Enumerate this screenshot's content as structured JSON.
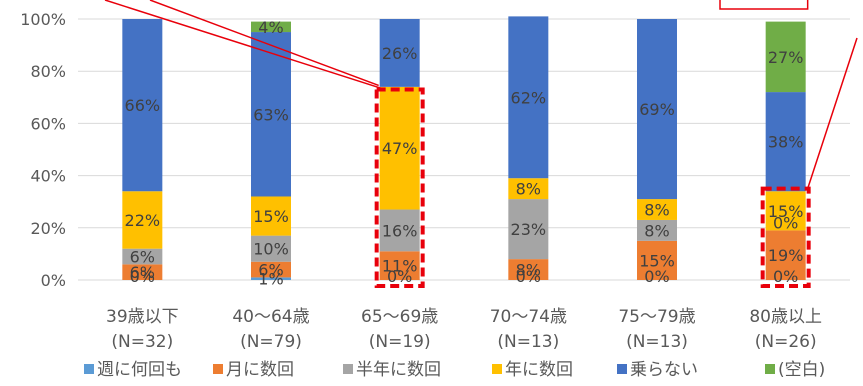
{
  "colors": {
    "weekly": "#5B9BD5",
    "monthly": "#ED7D31",
    "halfyear": "#A5A5A5",
    "yearly": "#FFC000",
    "none": "#4472C4",
    "blank": "#70AD47",
    "highlight": "#E8000B",
    "grid": "#D9D9D9"
  },
  "chart_data": {
    "type": "bar",
    "stacked": true,
    "ylim": [
      0,
      100
    ],
    "yticks": [
      "0%",
      "20%",
      "40%",
      "60%",
      "80%",
      "100%"
    ],
    "grid": true,
    "legend_position": "bottom",
    "categories": [
      "39歳以下",
      "40〜64歳",
      "65〜69歳",
      "70〜74歳",
      "75〜79歳",
      "80歳以上"
    ],
    "category_n": [
      "(N=32)",
      "(N=79)",
      "(N=19)",
      "(N=13)",
      "(N=13)",
      "(N=26)"
    ],
    "series": [
      {
        "name": "週に何回も",
        "color_key": "weekly",
        "values": [
          0,
          1,
          0,
          0,
          0,
          0
        ],
        "labels": [
          "0%",
          "1%",
          "0%",
          "0%",
          "0%",
          "0%"
        ]
      },
      {
        "name": "月に数回",
        "color_key": "monthly",
        "values": [
          6,
          6,
          11,
          8,
          15,
          19
        ],
        "labels": [
          "6%",
          "6%",
          "11%",
          "8%",
          "15%",
          "19%"
        ]
      },
      {
        "name": "半年に数回",
        "color_key": "halfyear",
        "values": [
          6,
          10,
          16,
          23,
          8,
          0
        ],
        "labels": [
          "6%",
          "10%",
          "16%",
          "23%",
          "8%",
          "0%"
        ]
      },
      {
        "name": "年に数回",
        "color_key": "yearly",
        "values": [
          22,
          15,
          47,
          8,
          8,
          15
        ],
        "labels": [
          "22%",
          "15%",
          "47%",
          "8%",
          "8%",
          "15%"
        ]
      },
      {
        "name": "乗らない",
        "color_key": "none",
        "values": [
          66,
          63,
          26,
          62,
          69,
          38
        ],
        "labels": [
          "66%",
          "63%",
          "26%",
          "62%",
          "69%",
          "38%"
        ]
      },
      {
        "name": "(空白)",
        "color_key": "blank",
        "values": [
          0,
          4,
          0,
          0,
          0,
          27
        ],
        "labels": [
          "",
          "4%",
          "",
          "",
          "",
          "27%"
        ]
      }
    ],
    "highlight_boxes": [
      {
        "category_index": 2,
        "from": 0,
        "to": 73
      },
      {
        "category_index": 5,
        "from": 0,
        "to": 35
      }
    ]
  }
}
